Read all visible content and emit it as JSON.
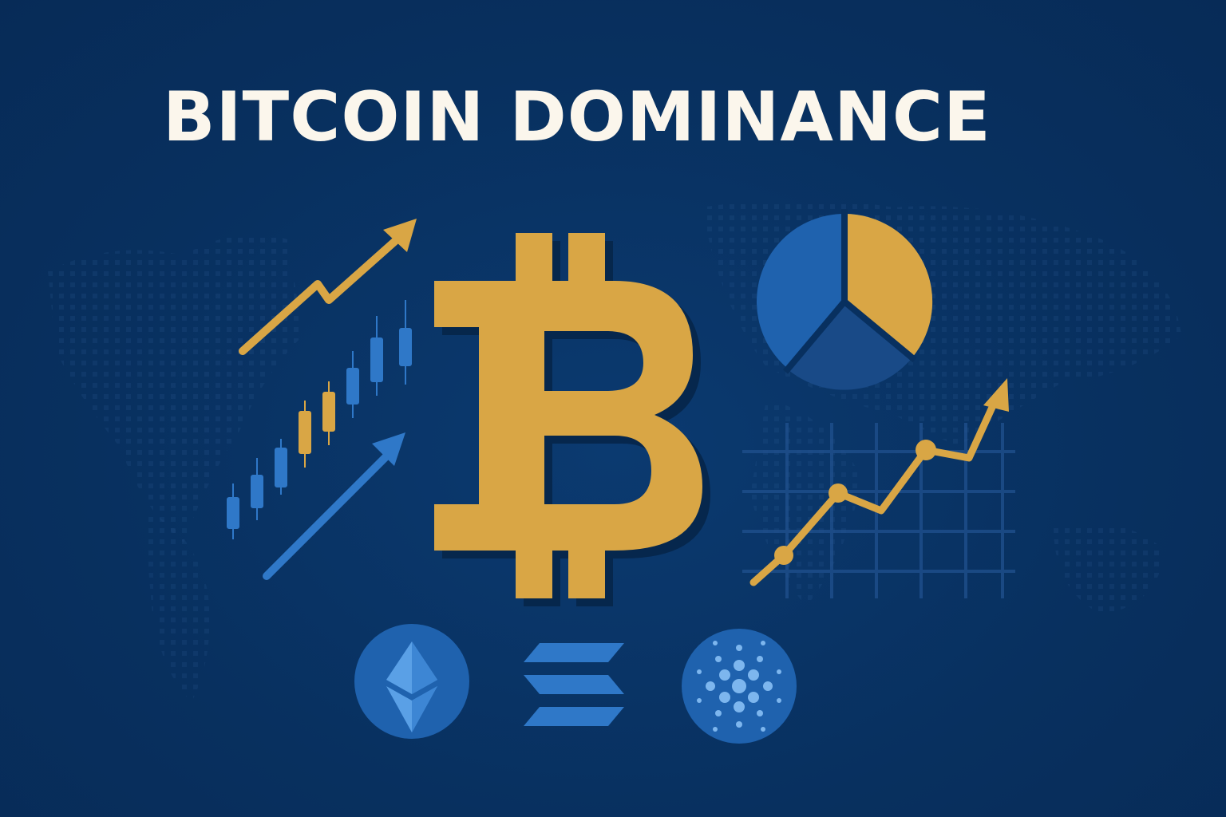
{
  "title": "BITCOIN DOMINANCE",
  "colors": {
    "background": "#08305f",
    "gold": "#d9a645",
    "blue": "#2f78c8",
    "blue_dark": "#1a4f8f",
    "title_text": "#fbf6ec"
  },
  "icons": {
    "main": "bitcoin-icon",
    "pie": "pie-chart-icon",
    "trend_up": "trend-up-arrow-icon",
    "candles": "candlestick-chart-icon",
    "line_chart": "line-chart-icon",
    "coins": [
      "ethereum-icon",
      "solana-icon",
      "cardano-icon"
    ]
  }
}
